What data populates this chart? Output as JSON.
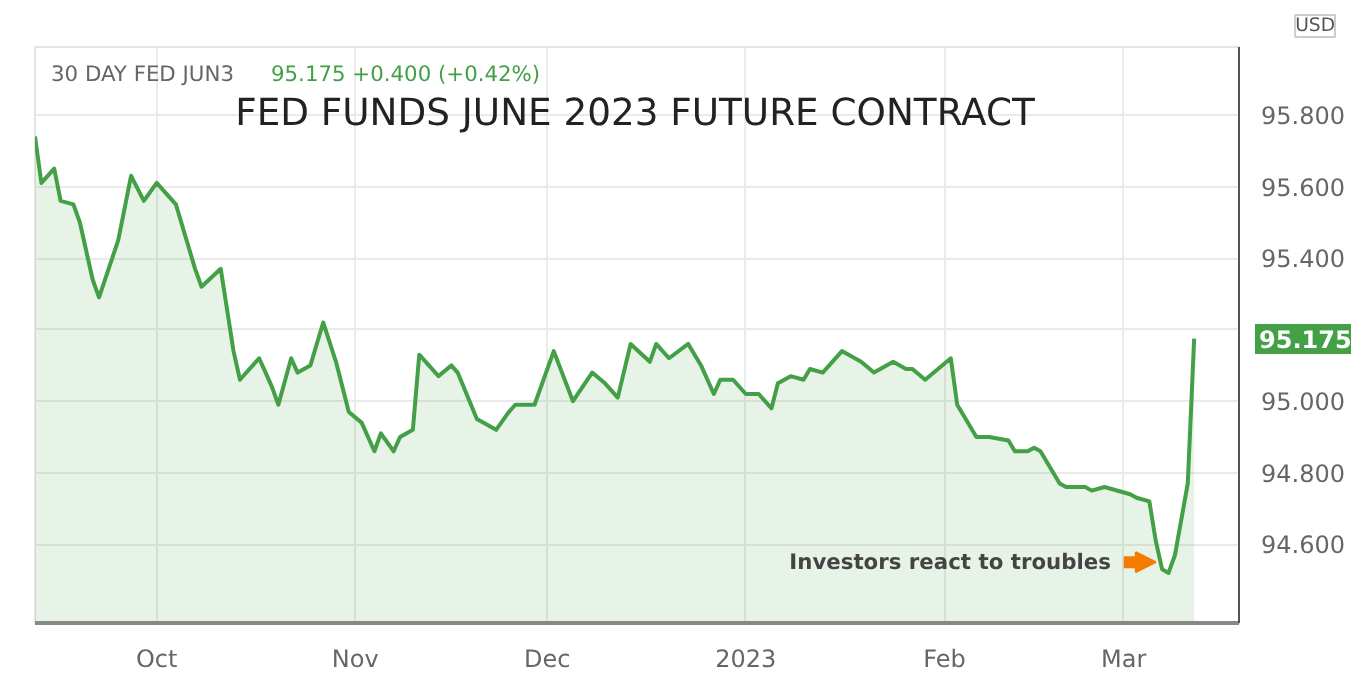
{
  "chart_data": {
    "type": "area",
    "title": "FED FUNDS JUNE 2023 FUTURE CONTRACT",
    "annotations": [
      "30 DAY FED JUN3",
      "95.175 +0.400 (+0.42%)",
      "USD",
      {
        "text": "95.175",
        "x": "2023-03-12",
        "y": 95.175
      },
      {
        "text": "Investors react to troubles",
        "x": "2023-03-06",
        "y": 94.55
      }
    ],
    "x": [
      "2022-09-12",
      "2022-09-13",
      "2022-09-15",
      "2022-09-16",
      "2022-09-18",
      "2022-09-19",
      "2022-09-21",
      "2022-09-22",
      "2022-09-25",
      "2022-09-27",
      "2022-09-29",
      "2022-10-01",
      "2022-10-04",
      "2022-10-07",
      "2022-10-08",
      "2022-10-11",
      "2022-10-13",
      "2022-10-14",
      "2022-10-17",
      "2022-10-19",
      "2022-10-20",
      "2022-10-22",
      "2022-10-23",
      "2022-10-25",
      "2022-10-27",
      "2022-10-29",
      "2022-10-31",
      "2022-11-02",
      "2022-11-04",
      "2022-11-05",
      "2022-11-07",
      "2022-11-08",
      "2022-11-10",
      "2022-11-11",
      "2022-11-14",
      "2022-11-16",
      "2022-11-17",
      "2022-11-20",
      "2022-11-23",
      "2022-11-25",
      "2022-11-26",
      "2022-11-29",
      "2022-12-02",
      "2022-12-05",
      "2022-12-08",
      "2022-12-10",
      "2022-12-12",
      "2022-12-14",
      "2022-12-17",
      "2022-12-18",
      "2022-12-20",
      "2022-12-23",
      "2022-12-25",
      "2022-12-27",
      "2022-12-28",
      "2022-12-30",
      "2023-01-01",
      "2023-01-03",
      "2023-01-05",
      "2023-01-06",
      "2023-01-08",
      "2023-01-10",
      "2023-01-11",
      "2023-01-13",
      "2023-01-16",
      "2023-01-19",
      "2023-01-21",
      "2023-01-24",
      "2023-01-26",
      "2023-01-27",
      "2023-01-29",
      "2023-02-02",
      "2023-02-03",
      "2023-02-06",
      "2023-02-08",
      "2023-02-11",
      "2023-02-12",
      "2023-02-14",
      "2023-02-15",
      "2023-02-16",
      "2023-02-19",
      "2023-02-20",
      "2023-02-23",
      "2023-02-24",
      "2023-02-26",
      "2023-03-02",
      "2023-03-03",
      "2023-03-05",
      "2023-03-06",
      "2023-03-07",
      "2023-03-08",
      "2023-03-09",
      "2023-03-11",
      "2023-03-12"
    ],
    "series": [
      {
        "color": "#43a047",
        "values": [
          95.74,
          95.61,
          95.65,
          95.56,
          95.55,
          95.5,
          95.34,
          95.29,
          95.45,
          95.63,
          95.56,
          95.61,
          95.55,
          95.37,
          95.32,
          95.37,
          95.14,
          95.06,
          95.12,
          95.04,
          94.99,
          95.12,
          95.08,
          95.1,
          95.22,
          95.11,
          94.97,
          94.94,
          94.86,
          94.91,
          94.86,
          94.9,
          94.92,
          95.13,
          95.07,
          95.1,
          95.08,
          94.95,
          94.92,
          94.97,
          94.99,
          94.99,
          95.14,
          95.0,
          95.08,
          95.05,
          95.01,
          95.16,
          95.11,
          95.16,
          95.12,
          95.16,
          95.1,
          95.02,
          95.06,
          95.06,
          95.02,
          95.02,
          94.98,
          95.05,
          95.07,
          95.06,
          95.09,
          95.08,
          95.14,
          95.11,
          95.08,
          95.11,
          95.09,
          95.09,
          95.06,
          95.12,
          94.99,
          94.9,
          94.9,
          94.89,
          94.86,
          94.86,
          94.87,
          94.86,
          94.77,
          94.76,
          94.76,
          94.75,
          94.76,
          94.74,
          94.73,
          94.72,
          94.61,
          94.53,
          94.52,
          94.57,
          94.77,
          95.175
        ]
      }
    ],
    "xlim": [
      "2022-09-12",
      "2023-03-19"
    ],
    "ylim": [
      94.38,
      95.99
    ],
    "xticks": [
      {
        "value": "2022-10-01",
        "label": "Oct"
      },
      {
        "value": "2022-11-01",
        "label": "Nov"
      },
      {
        "value": "2022-12-01",
        "label": "Dec"
      },
      {
        "value": "2023-01-01",
        "label": "2023"
      },
      {
        "value": "2023-02-01",
        "label": "Feb"
      },
      {
        "value": "2023-03-01",
        "label": "Mar"
      }
    ],
    "yticks": [
      {
        "value": 94.6,
        "label": "94.600"
      },
      {
        "value": 94.8,
        "label": "94.800"
      },
      {
        "value": 95.0,
        "label": "95.000"
      },
      {
        "value": 95.2,
        "label": null
      },
      {
        "value": 95.4,
        "label": "95.400"
      },
      {
        "value": 95.6,
        "label": "95.600"
      },
      {
        "value": 95.8,
        "label": "95.800"
      }
    ],
    "grid": true
  }
}
